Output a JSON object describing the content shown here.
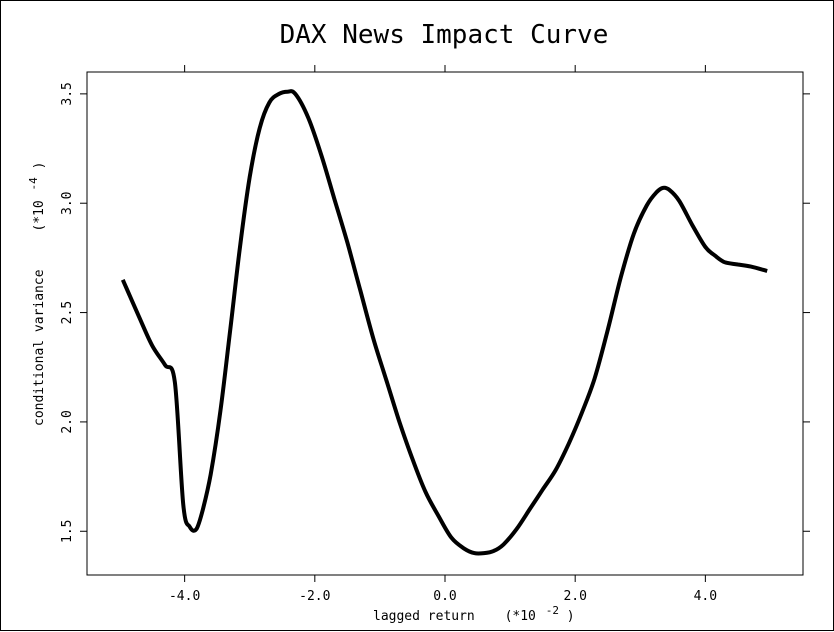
{
  "chart_data": {
    "type": "line",
    "title": "DAX News Impact Curve",
    "xlabel": "lagged return",
    "x_scale_label": "(*10",
    "x_scale_exp": "-2",
    "x_scale_close": ")",
    "ylabel": "conditional variance",
    "y_scale_label": "(*10",
    "y_scale_exp": "-4",
    "y_scale_close": ")",
    "xlim": [
      -5.5,
      5.5
    ],
    "ylim": [
      1.3,
      3.6
    ],
    "x_ticks": [
      -4.0,
      -2.0,
      0.0,
      2.0,
      4.0
    ],
    "x_tick_labels": [
      "-4.0",
      "-2.0",
      "0.0",
      "2.0",
      "4.0"
    ],
    "y_ticks": [
      1.5,
      2.0,
      2.5,
      3.0,
      3.5
    ],
    "y_tick_labels": [
      "1.5",
      "2.0",
      "2.5",
      "3.0",
      "3.5"
    ],
    "grid": false,
    "series": [
      {
        "color": "#000000",
        "x": [
          -4.95,
          -4.7,
          -4.5,
          -4.3,
          -4.15,
          -4.02,
          -3.92,
          -3.82,
          -3.72,
          -3.6,
          -3.45,
          -3.3,
          -3.15,
          -3.0,
          -2.85,
          -2.7,
          -2.55,
          -2.42,
          -2.3,
          -2.1,
          -1.9,
          -1.7,
          -1.5,
          -1.3,
          -1.1,
          -0.9,
          -0.7,
          -0.5,
          -0.3,
          -0.1,
          0.1,
          0.3,
          0.45,
          0.6,
          0.75,
          0.9,
          1.1,
          1.3,
          1.5,
          1.7,
          1.9,
          2.1,
          2.3,
          2.5,
          2.7,
          2.9,
          3.1,
          3.25,
          3.35,
          3.45,
          3.6,
          3.8,
          4.0,
          4.15,
          4.3,
          4.5,
          4.7,
          4.95
        ],
        "y": [
          2.65,
          2.48,
          2.35,
          2.26,
          2.18,
          1.62,
          1.52,
          1.51,
          1.6,
          1.76,
          2.05,
          2.42,
          2.8,
          3.12,
          3.34,
          3.46,
          3.5,
          3.51,
          3.5,
          3.39,
          3.22,
          3.02,
          2.82,
          2.6,
          2.38,
          2.19,
          2.0,
          1.83,
          1.68,
          1.57,
          1.47,
          1.42,
          1.4,
          1.4,
          1.41,
          1.44,
          1.51,
          1.6,
          1.69,
          1.78,
          1.9,
          2.04,
          2.2,
          2.42,
          2.66,
          2.86,
          2.99,
          3.05,
          3.07,
          3.06,
          3.01,
          2.9,
          2.8,
          2.76,
          2.73,
          2.72,
          2.71,
          2.69
        ]
      }
    ]
  }
}
